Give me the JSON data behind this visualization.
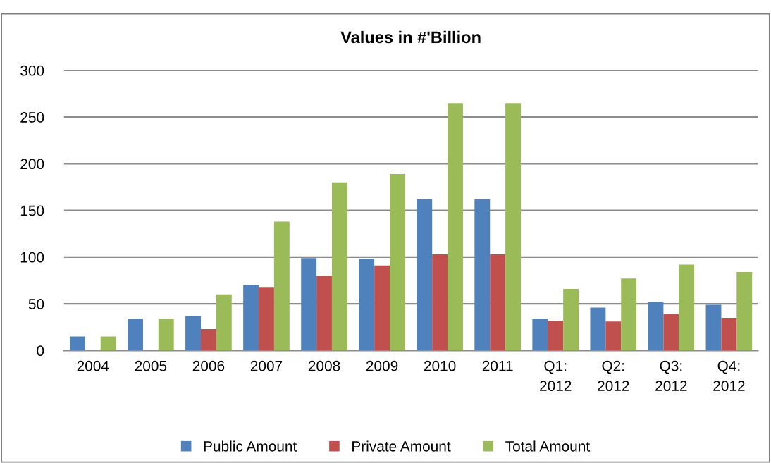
{
  "chart_data": {
    "type": "bar",
    "title": "Values in #'Billion",
    "categories": [
      "2004",
      "2005",
      "2006",
      "2007",
      "2008",
      "2009",
      "2010",
      "2011",
      "Q1:\n2012",
      "Q2:\n2012",
      "Q3:\n2012",
      "Q4:\n2012"
    ],
    "series": [
      {
        "name": "Public Amount",
        "color": "#4f81bd",
        "values": [
          15,
          34,
          37,
          70,
          99,
          98,
          162,
          162,
          34,
          46,
          52,
          49
        ]
      },
      {
        "name": "Private Amount",
        "color": "#c0504d",
        "values": [
          null,
          null,
          23,
          68,
          80,
          91,
          103,
          103,
          32,
          31,
          39,
          35
        ]
      },
      {
        "name": "Total Amount",
        "color": "#9bbb59",
        "values": [
          15,
          34,
          60,
          138,
          180,
          189,
          265,
          265,
          66,
          77,
          92,
          84
        ]
      }
    ],
    "ylim": [
      0,
      300
    ],
    "yticks": [
      0,
      50,
      100,
      150,
      200,
      250,
      300
    ],
    "grid": "y",
    "legend": "bottom"
  }
}
